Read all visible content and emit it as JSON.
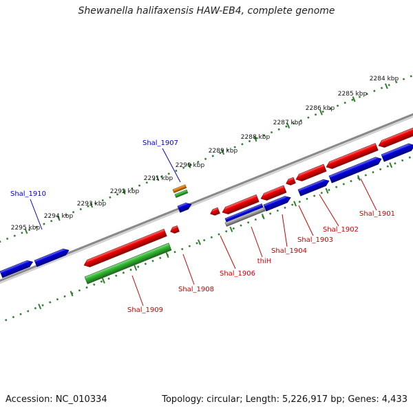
{
  "title": "Shewanella halifaxensis HAW-EB4, complete genome",
  "footer": {
    "accession_label": "Accession:",
    "accession": "NC_010334",
    "topology_label": "Topology:",
    "topology": "circular",
    "length_label": "Length:",
    "length": "5,226,917 bp",
    "genes_label": "Genes:",
    "genes": "4,433"
  },
  "colors": {
    "red": "#ee0000",
    "blue": "#0000dd",
    "green": "#33bb33",
    "orange": "#f08000",
    "gray": "#a6a6a6",
    "tick": "#2e7d2e",
    "label_red": "#cc0000",
    "label_blue": "#0000cc"
  },
  "scale_ticks": [
    "2284 kbp",
    "2285 kbp",
    "2286 kbp",
    "2287 kbp",
    "2288 kbp",
    "2289 kbp",
    "2290 kbp",
    "2291 kbp",
    "2292 kbp",
    "2293 kbp",
    "2294 kbp",
    "2295 kbp"
  ],
  "gene_labels": [
    {
      "text": "Shal_1901",
      "color": "red"
    },
    {
      "text": "Shal_1902",
      "color": "red"
    },
    {
      "text": "Shal_1903",
      "color": "red"
    },
    {
      "text": "Shal_1904",
      "color": "red"
    },
    {
      "text": "thiH",
      "color": "red"
    },
    {
      "text": "Shal_1906",
      "color": "red"
    },
    {
      "text": "Shal_1907",
      "color": "blue"
    },
    {
      "text": "Shal_1908",
      "color": "red"
    },
    {
      "text": "Shal_1909",
      "color": "red"
    },
    {
      "text": "Shal_1910",
      "color": "blue"
    }
  ]
}
